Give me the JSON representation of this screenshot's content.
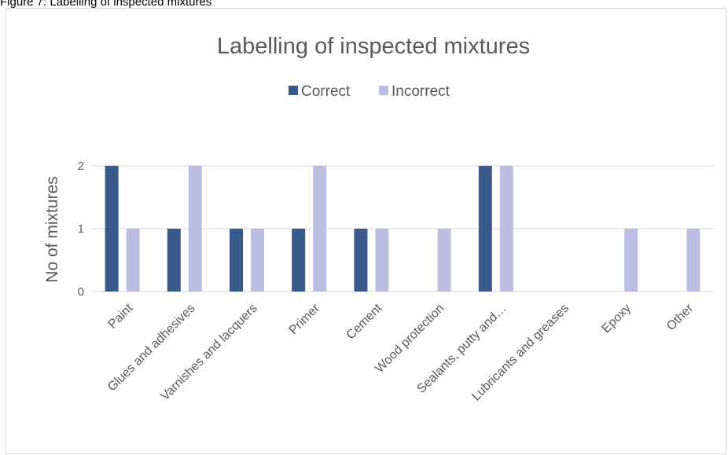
{
  "caption": "Figure 7: Labelling of inspected mixtures",
  "colors": {
    "correct": "#3a5a8c",
    "incorrect": "#bcbde3",
    "text": "#595959",
    "grid": "#d9d9d9"
  },
  "chart_data": {
    "type": "bar",
    "title": "Labelling of inspected mixtures",
    "xlabel": "",
    "ylabel": "No of mixtures",
    "ylim": [
      0,
      2
    ],
    "yticks": [
      0,
      1,
      2
    ],
    "grid": true,
    "legend_position": "top",
    "categories": [
      "Paint",
      "Glues and adhesives",
      "Varnishes and lacquers",
      "Primer",
      "Cement",
      "Wood protection",
      "Sealants, putty and…",
      "Lubricants and greases",
      "Epoxy",
      "Other"
    ],
    "series": [
      {
        "name": "Correct",
        "values": [
          2,
          1,
          1,
          1,
          1,
          0,
          2,
          0,
          0,
          0
        ]
      },
      {
        "name": "Incorrect",
        "values": [
          1,
          2,
          1,
          2,
          1,
          1,
          2,
          0,
          1,
          1
        ]
      }
    ]
  }
}
